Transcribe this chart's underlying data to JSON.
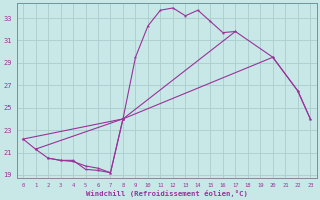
{
  "bg_color": "#c8e8e8",
  "line_color": "#993399",
  "grid_color": "#aacccc",
  "axis_color": "#888899",
  "xlabel": "Windchill (Refroidissement éolien,°C)",
  "xlim": [
    -0.5,
    23.5
  ],
  "ylim": [
    18.7,
    34.3
  ],
  "yticks": [
    19,
    21,
    23,
    25,
    27,
    29,
    31,
    33
  ],
  "xticks": [
    0,
    1,
    2,
    3,
    4,
    5,
    6,
    7,
    8,
    9,
    10,
    11,
    12,
    13,
    14,
    15,
    16,
    17,
    18,
    19,
    20,
    21,
    22,
    23
  ],
  "curve1_x": [
    0,
    1,
    2,
    3,
    4,
    5,
    6,
    7,
    8,
    9,
    10,
    11,
    12,
    13,
    14,
    15,
    16,
    17
  ],
  "curve1_y": [
    22.2,
    21.3,
    20.5,
    20.3,
    20.3,
    19.5,
    19.4,
    19.2,
    24.0,
    29.5,
    32.3,
    33.7,
    33.9,
    33.2,
    33.7,
    32.7,
    31.7,
    31.8
  ],
  "curve2_x": [
    2,
    3,
    4,
    5,
    6,
    7,
    8
  ],
  "curve2_y": [
    20.5,
    20.3,
    20.2,
    19.8,
    19.6,
    19.2,
    24.0
  ],
  "curve3_x": [
    0,
    8,
    20,
    22,
    23
  ],
  "curve3_y": [
    22.2,
    24.0,
    29.5,
    26.5,
    24.0
  ],
  "curve4_x": [
    1,
    8,
    17,
    20,
    22,
    23
  ],
  "curve4_y": [
    21.3,
    24.0,
    31.8,
    29.5,
    26.5,
    24.0
  ]
}
